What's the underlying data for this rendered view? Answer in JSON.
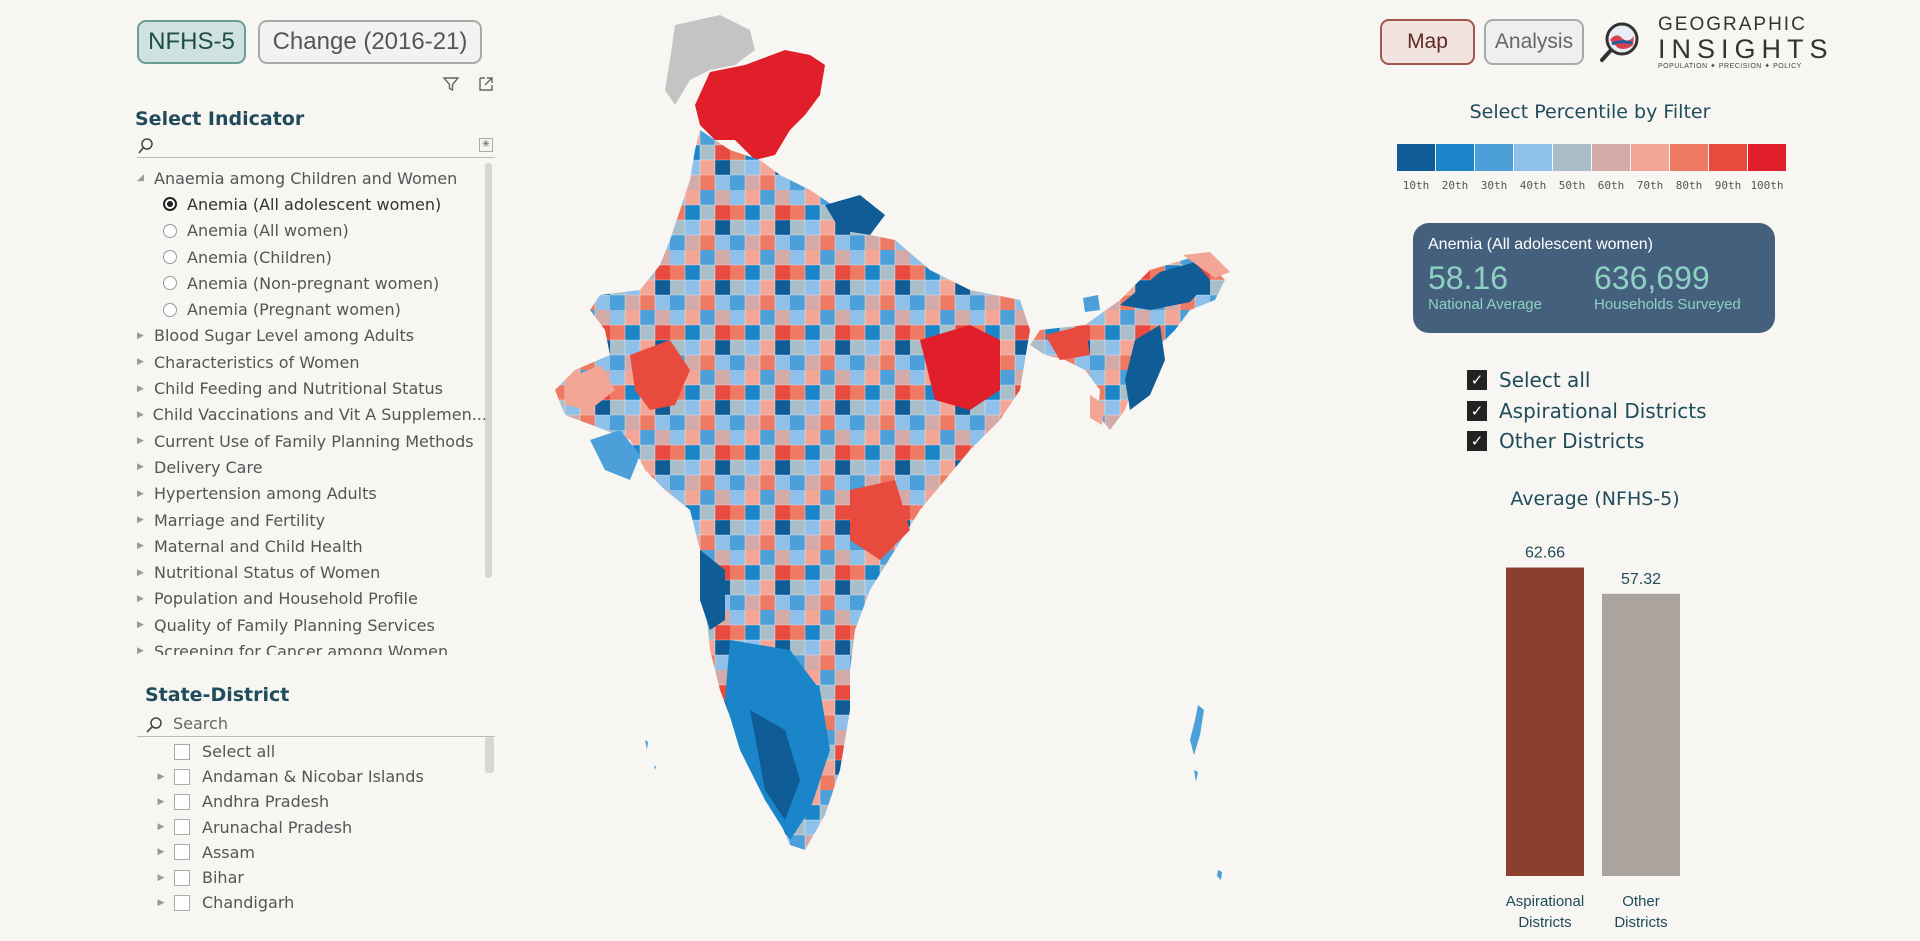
{
  "tabs": {
    "nfhs5": "NFHS-5",
    "change": "Change (2016-21)",
    "map": "Map",
    "analysis": "Analysis"
  },
  "logo": {
    "line1": "GEOGRAPHIC",
    "line2": "INSIGHTS",
    "tagline": "POPULATION ✦ PRECISION ✦ POLICY"
  },
  "indicator": {
    "title": "Select Indicator",
    "categories": [
      {
        "label": "Anaemia among Children and Women",
        "expanded": true,
        "items": [
          {
            "label": "Anemia (All adolescent women)",
            "selected": true
          },
          {
            "label": "Anemia (All women)",
            "selected": false
          },
          {
            "label": "Anemia (Children)",
            "selected": false
          },
          {
            "label": "Anemia (Non-pregnant women)",
            "selected": false
          },
          {
            "label": "Anemia (Pregnant women)",
            "selected": false
          }
        ]
      },
      {
        "label": "Blood Sugar Level among Adults"
      },
      {
        "label": "Characteristics of Women"
      },
      {
        "label": "Child Feeding and Nutritional Status"
      },
      {
        "label": "Child Vaccinations and Vit A Supplemen..."
      },
      {
        "label": "Current Use of Family Planning Methods"
      },
      {
        "label": "Delivery Care"
      },
      {
        "label": "Hypertension among Adults"
      },
      {
        "label": "Marriage and Fertility"
      },
      {
        "label": "Maternal and Child Health"
      },
      {
        "label": "Nutritional Status of Women"
      },
      {
        "label": "Population and Household Profile"
      },
      {
        "label": "Quality of Family Planning Services"
      },
      {
        "label": "Screening for Cancer among Women"
      }
    ]
  },
  "state_district": {
    "title": "State-District",
    "search_placeholder": "Search",
    "select_all": "Select all",
    "states": [
      "Andaman & Nicobar Islands",
      "Andhra Pradesh",
      "Arunachal Pradesh",
      "Assam",
      "Bihar",
      "Chandigarh"
    ]
  },
  "legend": {
    "title": "Select Percentile by Filter",
    "items": [
      {
        "label": "10th",
        "color": "#0f5c96"
      },
      {
        "label": "20th",
        "color": "#1a86c9"
      },
      {
        "label": "30th",
        "color": "#4c9fd8"
      },
      {
        "label": "40th",
        "color": "#8ec0ea"
      },
      {
        "label": "50th",
        "color": "#a9bec9"
      },
      {
        "label": "60th",
        "color": "#d4aaa9"
      },
      {
        "label": "70th",
        "color": "#f3a596"
      },
      {
        "label": "80th",
        "color": "#ee7a63"
      },
      {
        "label": "90th",
        "color": "#e84b3e"
      },
      {
        "label": "100th",
        "color": "#e01f2a"
      }
    ]
  },
  "kpi": {
    "title": "Anemia (All adolescent women)",
    "national_average": "58.16",
    "national_average_label": "National Average",
    "households": "636,699",
    "households_label": "Households Surveyed"
  },
  "district_filter": {
    "select_all": "Select all",
    "aspirational": "Aspirational Districts",
    "other": "Other Districts"
  },
  "chart_data": {
    "type": "bar",
    "title": "Average (NFHS-5)",
    "categories": [
      "Aspirational Districts",
      "Other Districts"
    ],
    "values": [
      62.66,
      57.32
    ],
    "data_labels": [
      "62.66",
      "57.32"
    ],
    "colors": [
      "#8d3f2e",
      "#aba39d"
    ],
    "ylim": [
      0,
      65
    ]
  }
}
